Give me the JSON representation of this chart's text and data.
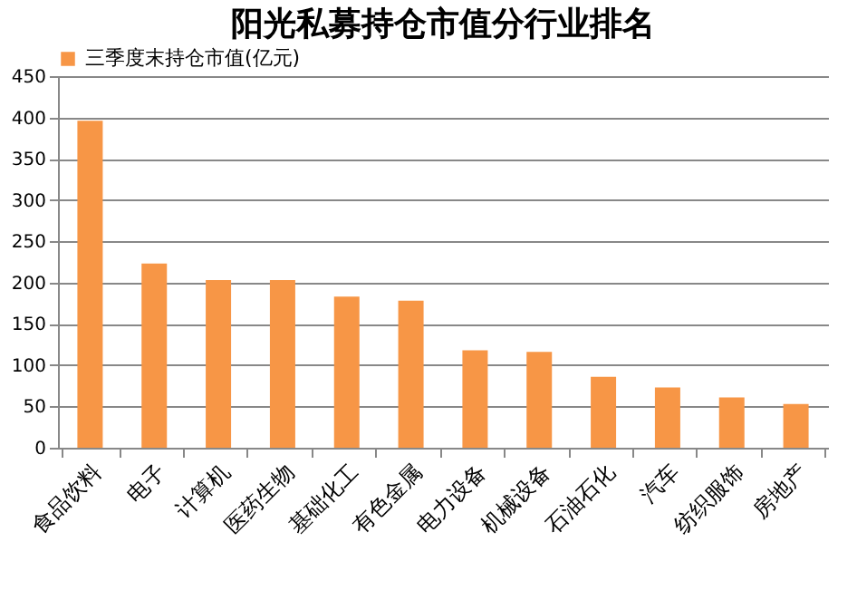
{
  "chart_data": {
    "type": "bar",
    "title": "阳光私募持仓市值分行业排名",
    "categories": [
      "食品饮料",
      "电子",
      "计算机",
      "医药生物",
      "基础化工",
      "有色金属",
      "电力设备",
      "机械设备",
      "石油石化",
      "汽车",
      "纺织服饰",
      "房地产"
    ],
    "series": [
      {
        "name": "三季度末持仓市值(亿元)",
        "color": "#f79646",
        "values": [
          396,
          223,
          203,
          203,
          183,
          178,
          118,
          116,
          86,
          73,
          61,
          53
        ]
      }
    ],
    "ylim": [
      0,
      450
    ],
    "yticks": [
      0,
      50,
      100,
      150,
      200,
      250,
      300,
      350,
      400,
      450
    ],
    "grid": "y",
    "legend": "top"
  }
}
